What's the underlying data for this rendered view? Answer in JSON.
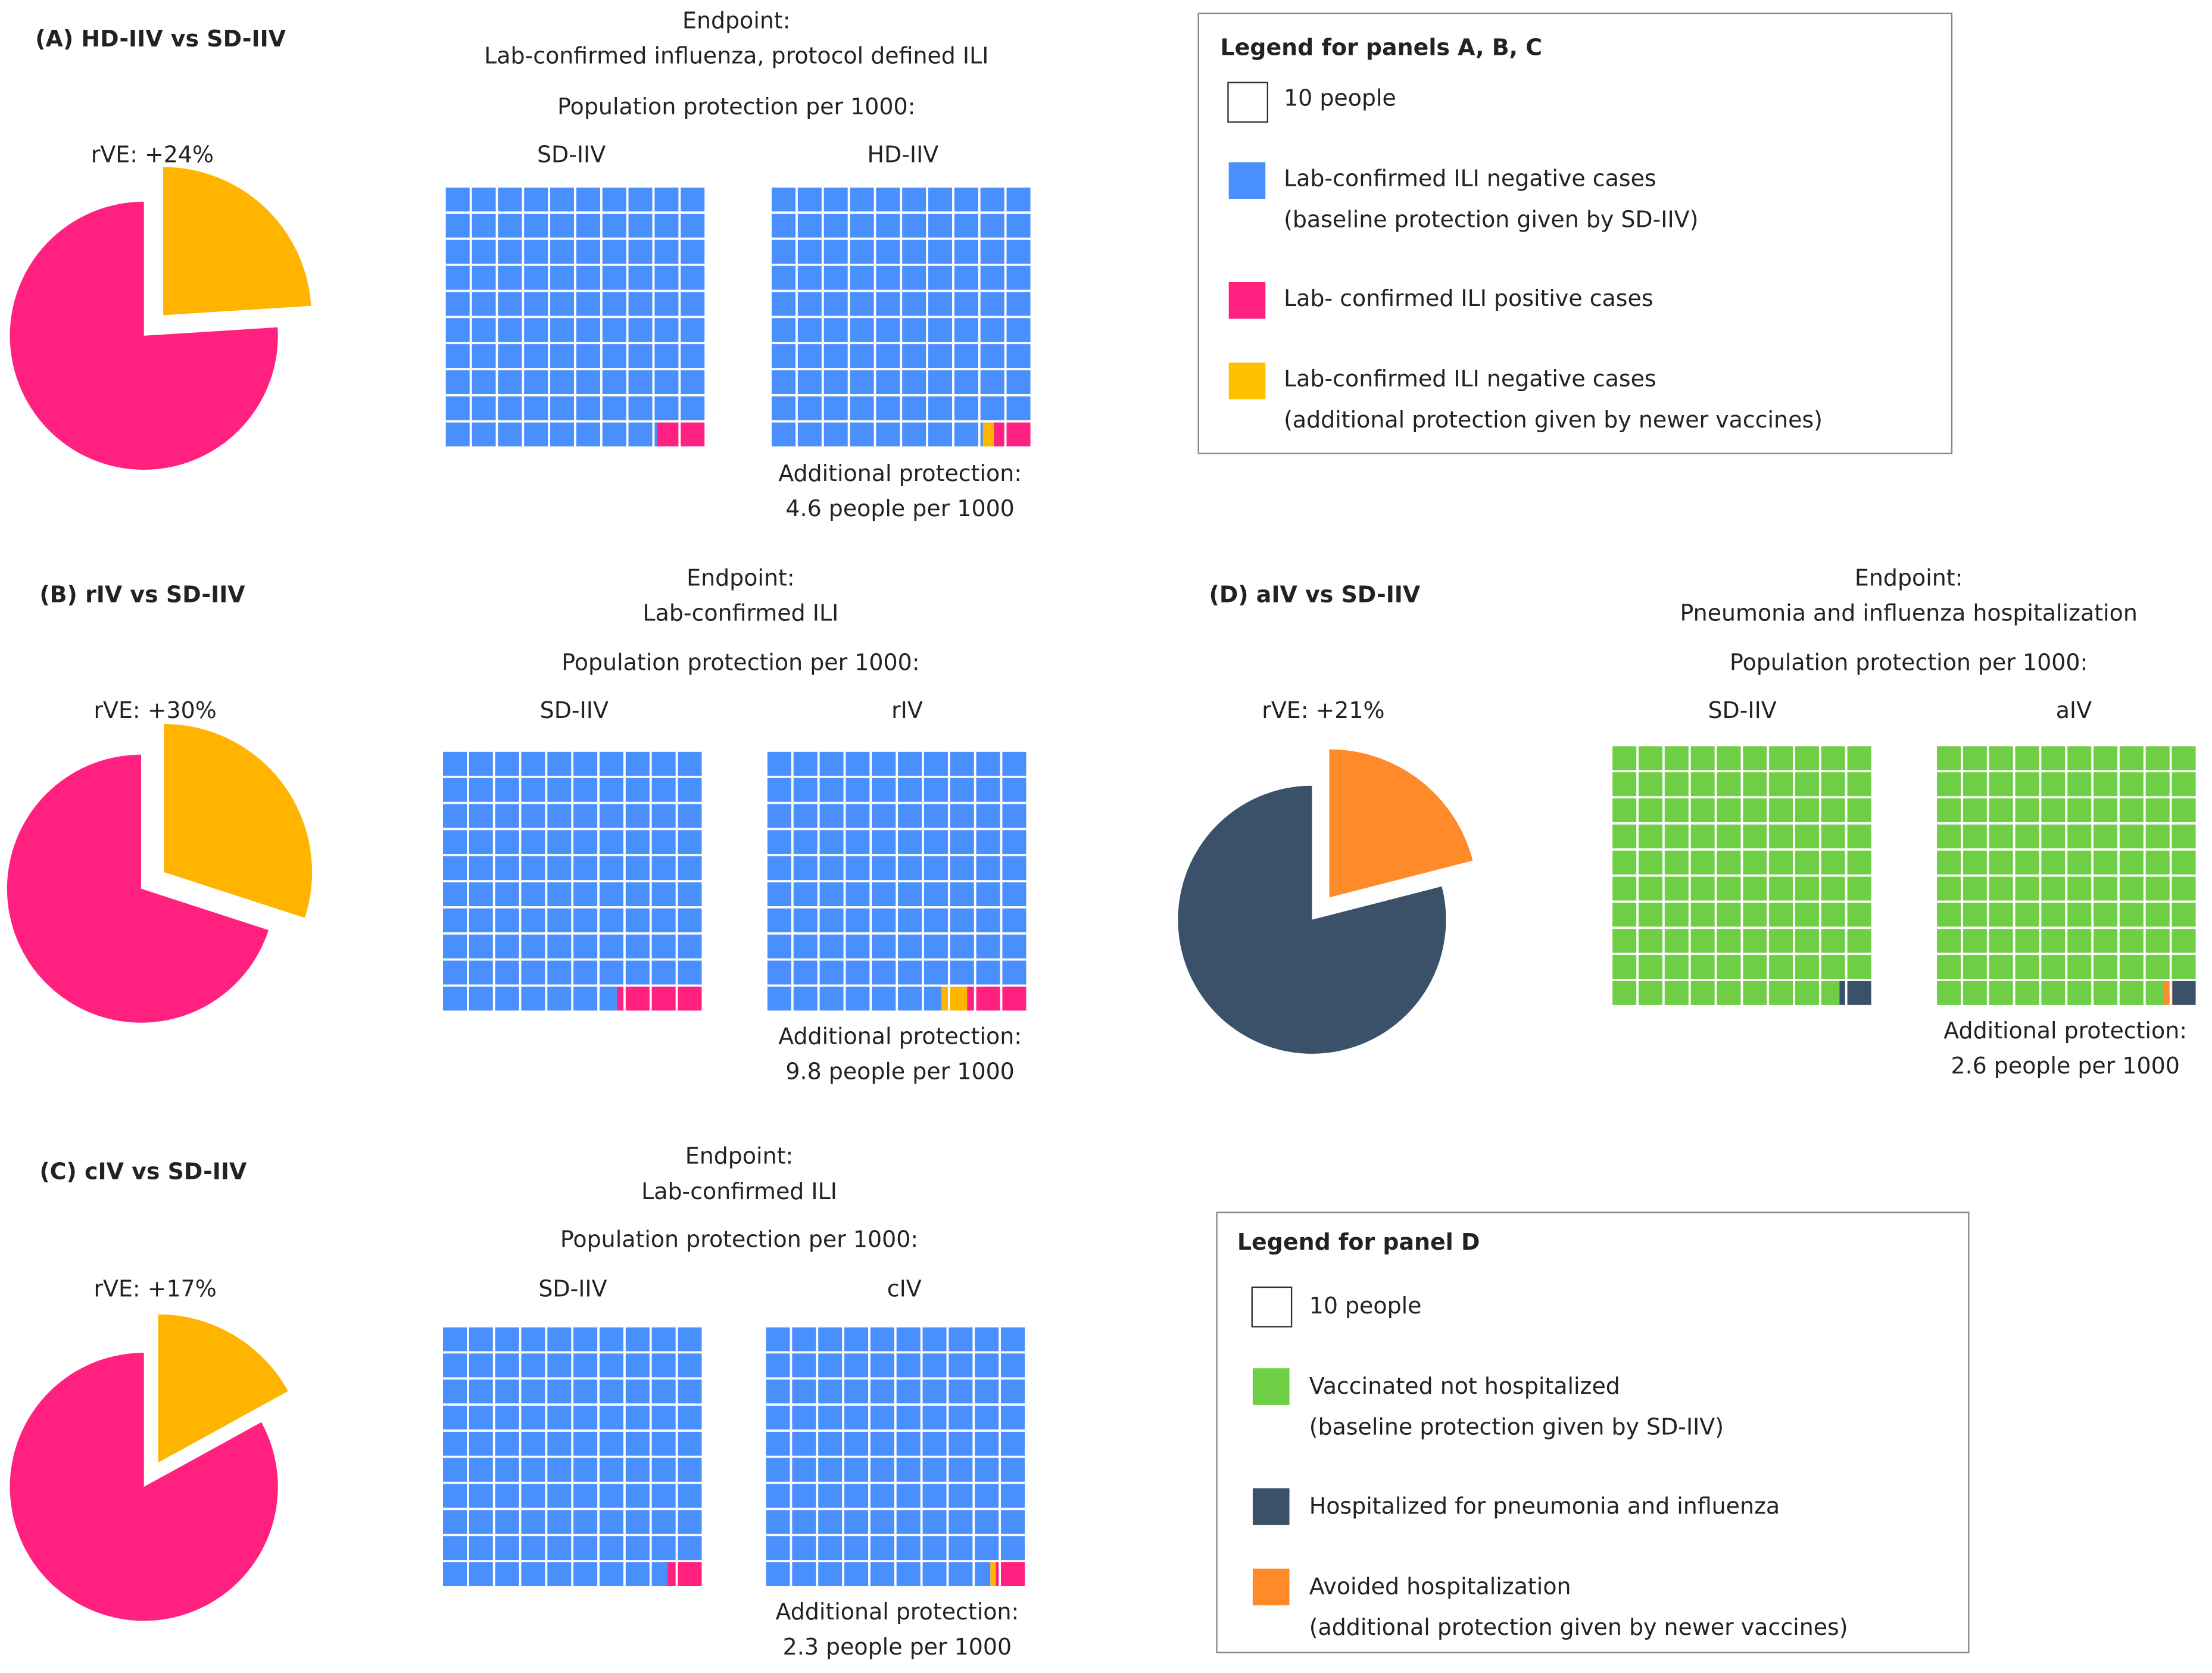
{
  "colors": {
    "baseline_A": "#4a8ffe",
    "positive_A": "#ff2080",
    "additional_A": "#ffb400",
    "baseline_D": "#6fcf44",
    "positive_D": "#3b5169",
    "additional_D": "#ff8a2a"
  },
  "unit_per_cell": 10,
  "chart_data": [
    {
      "panel": "A",
      "type": "pie+waffle",
      "title": "(A) HD-IIV vs SD-IIV",
      "rve_label": "rVE: +24%",
      "rve": 0.24,
      "endpoint_label": "Endpoint:",
      "endpoint": "Lab-confirmed influenza, protocol defined ILI",
      "population_label": "Population protection per 1000:",
      "waffles": [
        {
          "name": "SD-IIV",
          "positive": 19,
          "additional": 0
        },
        {
          "name": "HD-IIV",
          "positive": 14.4,
          "additional": 4.6
        }
      ],
      "additional_label": "Additional protection:",
      "additional_value": "4.6 people per 1000"
    },
    {
      "panel": "B",
      "type": "pie+waffle",
      "title": "(B) rIV vs SD-IIV",
      "rve_label": "rVE: +30%",
      "rve": 0.3,
      "endpoint_label": "Endpoint:",
      "endpoint": "Lab-confirmed ILI",
      "population_label": "Population protection per 1000:",
      "waffles": [
        {
          "name": "SD-IIV",
          "positive": 32.7,
          "additional": 0
        },
        {
          "name": "rIV",
          "positive": 22.9,
          "additional": 9.8
        }
      ],
      "additional_label": "Additional protection:",
      "additional_value": "9.8 people per 1000"
    },
    {
      "panel": "C",
      "type": "pie+waffle",
      "title": "(C) cIV vs SD-IIV",
      "rve_label": "rVE: +17%",
      "rve": 0.17,
      "endpoint_label": "Endpoint:",
      "endpoint": "Lab-confirmed ILI",
      "population_label": "Population protection per 1000:",
      "waffles": [
        {
          "name": "SD-IIV",
          "positive": 13.5,
          "additional": 0
        },
        {
          "name": "cIV",
          "positive": 11.2,
          "additional": 2.3
        }
      ],
      "additional_label": "Additional protection:",
      "additional_value": "2.3 people per 1000"
    },
    {
      "panel": "D",
      "type": "pie+waffle",
      "title": "(D) aIV vs SD-IIV",
      "rve_label": "rVE: +21%",
      "rve": 0.21,
      "endpoint_label": "Endpoint:",
      "endpoint": "Pneumonia and influenza hospitalization",
      "population_label": "Population protection per 1000:",
      "waffles": [
        {
          "name": "SD-IIV",
          "positive": 12.4,
          "additional": 0
        },
        {
          "name": "aIV",
          "positive": 9.8,
          "additional": 2.6
        }
      ],
      "additional_label": "Additional protection:",
      "additional_value": "2.6 people per 1000"
    }
  ],
  "legend_abc": {
    "title": "Legend for panels A, B, C",
    "items": [
      {
        "line1": "10 people",
        "line2": ""
      },
      {
        "line1": "Lab-confirmed ILI negative cases",
        "line2": "(baseline protection given by SD-IIV)"
      },
      {
        "line1": "Lab- confirmed ILI positive cases",
        "line2": ""
      },
      {
        "line1": "Lab-confirmed ILI negative cases",
        "line2": "(additional protection given by newer vaccines)"
      }
    ]
  },
  "legend_d": {
    "title": "Legend for panel D",
    "items": [
      {
        "line1": "10 people",
        "line2": ""
      },
      {
        "line1": "Vaccinated not hospitalized",
        "line2": "(baseline protection given by SD-IIV)"
      },
      {
        "line1": "Hospitalized for pneumonia and influenza",
        "line2": ""
      },
      {
        "line1": "Avoided hospitalization",
        "line2": "(additional protection given by newer vaccines)"
      }
    ]
  }
}
